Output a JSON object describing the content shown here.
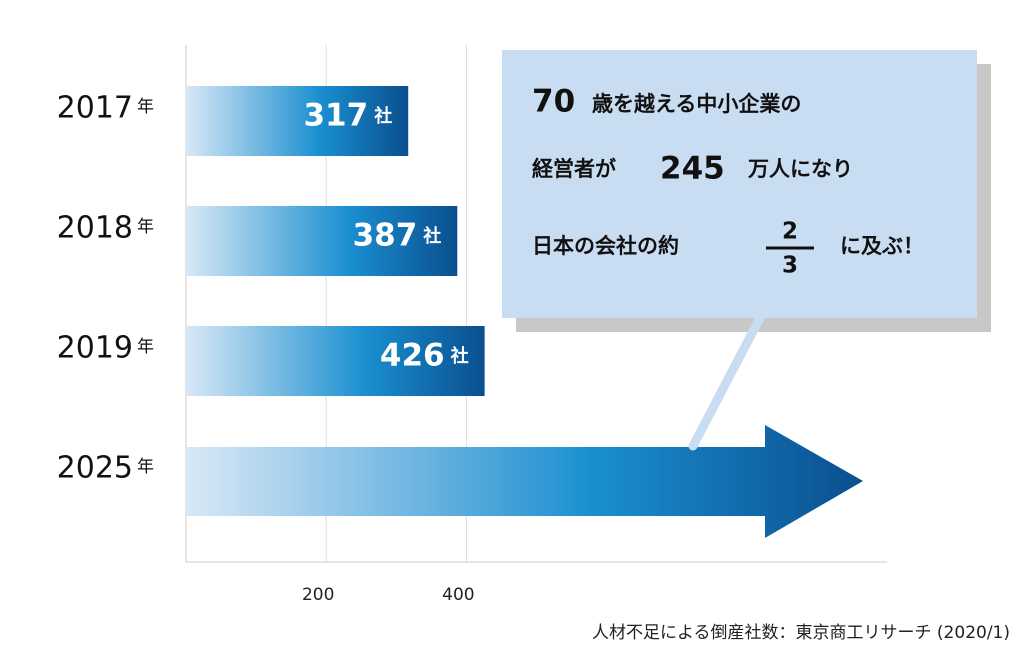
{
  "chart_data": {
    "type": "bar",
    "orientation": "horizontal",
    "categories": [
      "2017",
      "2018",
      "2019",
      "2025"
    ],
    "category_suffix": "年",
    "values": [
      317,
      387,
      426,
      null
    ],
    "unit": "社",
    "colors": [
      "#d8e8f6",
      "#1a8fd0",
      "#0a4f8f"
    ],
    "xlim": [
      0,
      1000
    ],
    "xticks": [
      200,
      400
    ],
    "grid": true,
    "callout": [
      [
        "70",
        "歳を越える中小企業の"
      ],
      [
        "経営者が",
        "245",
        "万人になり"
      ],
      [
        "日本の会社の約",
        "2",
        "3",
        "に及ぶ！"
      ]
    ],
    "source": "人材不足による倒産社数：東京商工リサーチ (2020/1)"
  }
}
